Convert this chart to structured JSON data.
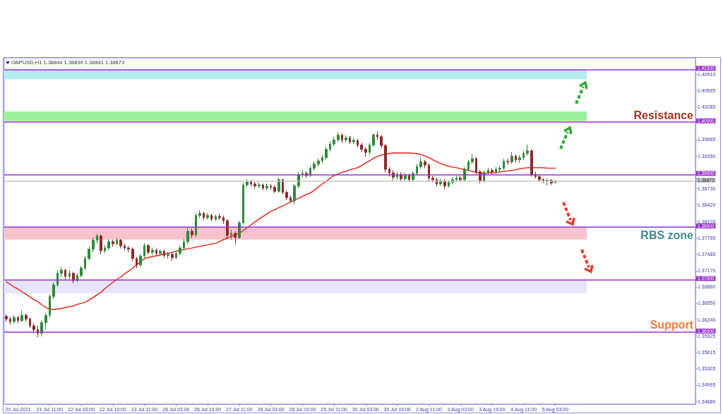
{
  "chart_data": {
    "type": "candlestick",
    "title": "GBPUSD,H1 1.38844 1.38894 1.38841 1.38873",
    "categories": [
      null,
      null,
      null,
      "20 Jul 2021",
      null,
      null,
      null,
      null,
      null,
      null,
      null,
      "21 Jul 11:00",
      null,
      null,
      null,
      null,
      null,
      null,
      null,
      "22 Jul 03:00",
      null,
      null,
      null,
      null,
      null,
      null,
      null,
      "22 Jul 19:00",
      null,
      null,
      null,
      null,
      null,
      null,
      null,
      "23 Jul 11:00",
      null,
      null,
      null,
      null,
      null,
      null,
      null,
      "26 Jul 03:00",
      null,
      null,
      null,
      null,
      null,
      null,
      null,
      "26 Jul 19:00",
      null,
      null,
      null,
      null,
      null,
      null,
      null,
      "27 Jul 11:00",
      null,
      null,
      null,
      null,
      null,
      null,
      null,
      "28 Jul 03:00",
      null,
      null,
      null,
      null,
      null,
      null,
      null,
      "28 Jul 19:00",
      null,
      null,
      null,
      null,
      null,
      null,
      null,
      "29 Jul 11:00",
      null,
      null,
      null,
      null,
      null,
      null,
      null,
      "30 Jul 03:00",
      null,
      null,
      null,
      null,
      null,
      null,
      null,
      "30 Jul 19:00",
      null,
      null,
      null,
      null,
      null,
      null,
      null,
      "2 Aug 11:00",
      null,
      null,
      null,
      null,
      null,
      null,
      null,
      "3 Aug 03:00",
      null,
      null,
      null,
      null,
      null,
      null,
      null,
      "3 Aug 19:00",
      null,
      null,
      null,
      null,
      null,
      null,
      null,
      "4 Aug 11:00",
      null,
      null,
      null,
      null,
      null,
      null,
      null,
      "5 Aug 03:00"
    ],
    "ohlc": [
      [
        1.363,
        1.3634,
        1.362,
        1.3625
      ],
      [
        1.3625,
        1.3629,
        1.3614,
        1.362
      ],
      [
        1.362,
        1.3632,
        1.3616,
        1.3628
      ],
      [
        1.3628,
        1.3631,
        1.3617,
        1.3622
      ],
      [
        1.3622,
        1.3641,
        1.3619,
        1.3632
      ],
      [
        1.3632,
        1.3635,
        1.362,
        1.3625
      ],
      [
        1.3625,
        1.3628,
        1.3608,
        1.3612
      ],
      [
        1.3612,
        1.3616,
        1.3598,
        1.3605
      ],
      [
        1.3605,
        1.3612,
        1.359,
        1.3598
      ],
      [
        1.3598,
        1.3622,
        1.3592,
        1.3618
      ],
      [
        1.3618,
        1.3637,
        1.3605,
        1.3632
      ],
      [
        1.3632,
        1.3672,
        1.3628,
        1.3668
      ],
      [
        1.3668,
        1.3695,
        1.3663,
        1.369
      ],
      [
        1.369,
        1.3718,
        1.3686,
        1.3712
      ],
      [
        1.3712,
        1.3724,
        1.3706,
        1.3718
      ],
      [
        1.3718,
        1.3721,
        1.37,
        1.3706
      ],
      [
        1.3706,
        1.3718,
        1.3701,
        1.3712
      ],
      [
        1.3712,
        1.3715,
        1.3693,
        1.3698
      ],
      [
        1.3698,
        1.3712,
        1.3695,
        1.3708
      ],
      [
        1.3708,
        1.3726,
        1.3704,
        1.3722
      ],
      [
        1.3722,
        1.3745,
        1.3718,
        1.374
      ],
      [
        1.374,
        1.3763,
        1.3736,
        1.3758
      ],
      [
        1.3758,
        1.378,
        1.3752,
        1.3775
      ],
      [
        1.3775,
        1.3787,
        1.3768,
        1.3783
      ],
      [
        1.3783,
        1.3786,
        1.3748,
        1.3755
      ],
      [
        1.3755,
        1.3766,
        1.375,
        1.376
      ],
      [
        1.376,
        1.3777,
        1.3756,
        1.3772
      ],
      [
        1.3772,
        1.3776,
        1.3762,
        1.3768
      ],
      [
        1.3768,
        1.3779,
        1.3764,
        1.3775
      ],
      [
        1.3775,
        1.3777,
        1.3759,
        1.3764
      ],
      [
        1.3764,
        1.3768,
        1.3755,
        1.376
      ],
      [
        1.376,
        1.3764,
        1.3752,
        1.3758
      ],
      [
        1.3758,
        1.3761,
        1.3735,
        1.374
      ],
      [
        1.374,
        1.3743,
        1.3722,
        1.3728
      ],
      [
        1.3728,
        1.3749,
        1.3725,
        1.3745
      ],
      [
        1.3745,
        1.3769,
        1.3741,
        1.3765
      ],
      [
        1.3765,
        1.3767,
        1.3748,
        1.3752
      ],
      [
        1.3752,
        1.3761,
        1.3747,
        1.3756
      ],
      [
        1.3756,
        1.3759,
        1.3745,
        1.375
      ],
      [
        1.375,
        1.3758,
        1.3744,
        1.3754
      ],
      [
        1.3754,
        1.3757,
        1.3741,
        1.3746
      ],
      [
        1.3746,
        1.3753,
        1.374,
        1.3748
      ],
      [
        1.3748,
        1.3752,
        1.3736,
        1.3742
      ],
      [
        1.3742,
        1.3755,
        1.3739,
        1.375
      ],
      [
        1.375,
        1.3765,
        1.3746,
        1.376
      ],
      [
        1.376,
        1.3777,
        1.3756,
        1.3772
      ],
      [
        1.3772,
        1.3798,
        1.3768,
        1.3792
      ],
      [
        1.3792,
        1.3797,
        1.3779,
        1.3785
      ],
      [
        1.3785,
        1.3827,
        1.3781,
        1.3822
      ],
      [
        1.3822,
        1.3832,
        1.3817,
        1.3826
      ],
      [
        1.3826,
        1.3829,
        1.3813,
        1.3818
      ],
      [
        1.3818,
        1.3827,
        1.3814,
        1.3822
      ],
      [
        1.3822,
        1.3825,
        1.3811,
        1.3815
      ],
      [
        1.3815,
        1.3824,
        1.3811,
        1.382
      ],
      [
        1.382,
        1.3825,
        1.3813,
        1.3818
      ],
      [
        1.3818,
        1.3822,
        1.3806,
        1.3812
      ],
      [
        1.3812,
        1.3815,
        1.3778,
        1.3784
      ],
      [
        1.3784,
        1.3795,
        1.3776,
        1.3788
      ],
      [
        1.3788,
        1.3792,
        1.3767,
        1.378
      ],
      [
        1.378,
        1.3812,
        1.3777,
        1.3808
      ],
      [
        1.3808,
        1.3884,
        1.3805,
        1.388
      ],
      [
        1.388,
        1.3891,
        1.3876,
        1.3886
      ],
      [
        1.3886,
        1.389,
        1.3877,
        1.3882
      ],
      [
        1.3882,
        1.3886,
        1.3873,
        1.3878
      ],
      [
        1.3878,
        1.3885,
        1.3874,
        1.388
      ],
      [
        1.388,
        1.3883,
        1.387,
        1.3874
      ],
      [
        1.3874,
        1.3883,
        1.387,
        1.3878
      ],
      [
        1.3878,
        1.3882,
        1.3871,
        1.3876
      ],
      [
        1.3876,
        1.3879,
        1.3865,
        1.3868
      ],
      [
        1.3868,
        1.3894,
        1.3865,
        1.389
      ],
      [
        1.389,
        1.3892,
        1.3862,
        1.3866
      ],
      [
        1.3866,
        1.3869,
        1.3851,
        1.3856
      ],
      [
        1.3856,
        1.386,
        1.3846,
        1.385
      ],
      [
        1.385,
        1.3882,
        1.3843,
        1.3878
      ],
      [
        1.3878,
        1.3905,
        1.3874,
        1.39
      ],
      [
        1.39,
        1.3908,
        1.3895,
        1.3902
      ],
      [
        1.3902,
        1.3906,
        1.3893,
        1.3898
      ],
      [
        1.3898,
        1.3916,
        1.3895,
        1.3912
      ],
      [
        1.3912,
        1.3925,
        1.3908,
        1.392
      ],
      [
        1.392,
        1.3931,
        1.3915,
        1.3926
      ],
      [
        1.3926,
        1.3937,
        1.3922,
        1.3932
      ],
      [
        1.3932,
        1.3953,
        1.3928,
        1.3948
      ],
      [
        1.3948,
        1.3963,
        1.3944,
        1.3958
      ],
      [
        1.3958,
        1.3972,
        1.3954,
        1.3966
      ],
      [
        1.3966,
        1.3981,
        1.3962,
        1.3975
      ],
      [
        1.3975,
        1.3978,
        1.396,
        1.3966
      ],
      [
        1.3966,
        1.3975,
        1.3962,
        1.397
      ],
      [
        1.397,
        1.3973,
        1.3958,
        1.3962
      ],
      [
        1.3962,
        1.397,
        1.3958,
        1.3965
      ],
      [
        1.3965,
        1.3968,
        1.3951,
        1.3956
      ],
      [
        1.3956,
        1.396,
        1.3943,
        1.3948
      ],
      [
        1.3948,
        1.3952,
        1.3934,
        1.3942
      ],
      [
        1.3942,
        1.396,
        1.3938,
        1.3956
      ],
      [
        1.3956,
        1.3979,
        1.3952,
        1.3975
      ],
      [
        1.3975,
        1.3982,
        1.3966,
        1.3972
      ],
      [
        1.3972,
        1.3975,
        1.395,
        1.3955
      ],
      [
        1.3955,
        1.3958,
        1.3904,
        1.391
      ],
      [
        1.391,
        1.3914,
        1.3896,
        1.3903
      ],
      [
        1.3903,
        1.3908,
        1.3889,
        1.3895
      ],
      [
        1.3895,
        1.3905,
        1.389,
        1.39
      ],
      [
        1.39,
        1.3904,
        1.3887,
        1.3892
      ],
      [
        1.3892,
        1.3903,
        1.3888,
        1.3898
      ],
      [
        1.3898,
        1.3901,
        1.3886,
        1.389
      ],
      [
        1.389,
        1.3906,
        1.3887,
        1.3902
      ],
      [
        1.3902,
        1.392,
        1.3898,
        1.3915
      ],
      [
        1.3915,
        1.3933,
        1.3911,
        1.3924
      ],
      [
        1.3924,
        1.3928,
        1.3912,
        1.3918
      ],
      [
        1.3918,
        1.3921,
        1.3888,
        1.3893
      ],
      [
        1.3893,
        1.3897,
        1.3885,
        1.389
      ],
      [
        1.389,
        1.3894,
        1.3877,
        1.3882
      ],
      [
        1.3882,
        1.3892,
        1.3878,
        1.3888
      ],
      [
        1.3888,
        1.3891,
        1.3872,
        1.3878
      ],
      [
        1.3878,
        1.3889,
        1.3875,
        1.3885
      ],
      [
        1.3885,
        1.3895,
        1.3881,
        1.389
      ],
      [
        1.389,
        1.3898,
        1.3886,
        1.3893
      ],
      [
        1.3893,
        1.3897,
        1.3886,
        1.389
      ],
      [
        1.389,
        1.3914,
        1.3887,
        1.391
      ],
      [
        1.391,
        1.3928,
        1.3906,
        1.3924
      ],
      [
        1.3924,
        1.3939,
        1.392,
        1.393
      ],
      [
        1.393,
        1.3933,
        1.39,
        1.3905
      ],
      [
        1.3905,
        1.3908,
        1.3883,
        1.3888
      ],
      [
        1.3888,
        1.3908,
        1.3885,
        1.3904
      ],
      [
        1.3904,
        1.3913,
        1.39,
        1.3908
      ],
      [
        1.3908,
        1.3912,
        1.39,
        1.3905
      ],
      [
        1.3905,
        1.3915,
        1.3901,
        1.391
      ],
      [
        1.391,
        1.3917,
        1.3906,
        1.3912
      ],
      [
        1.3912,
        1.393,
        1.3908,
        1.3925
      ],
      [
        1.3925,
        1.393,
        1.3919,
        1.3924
      ],
      [
        1.3924,
        1.3943,
        1.392,
        1.3935
      ],
      [
        1.3935,
        1.3938,
        1.3923,
        1.3928
      ],
      [
        1.3928,
        1.3937,
        1.3922,
        1.3932
      ],
      [
        1.3932,
        1.3945,
        1.3927,
        1.394
      ],
      [
        1.394,
        1.3957,
        1.3936,
        1.3945
      ],
      [
        1.3945,
        1.3948,
        1.3896,
        1.39
      ],
      [
        1.39,
        1.3905,
        1.3892,
        1.3896
      ],
      [
        1.3896,
        1.3899,
        1.3886,
        1.389
      ],
      [
        1.389,
        1.3893,
        1.3884,
        1.3888
      ],
      [
        1.3888,
        1.3893,
        1.3879,
        1.3889
      ],
      [
        1.3889,
        1.3891,
        1.388,
        1.3884
      ],
      [
        1.38844,
        1.38894,
        1.38841,
        1.38873
      ]
    ],
    "colors": [
      "#8e2a2a",
      "#8e2a2a",
      "#2f8a3b",
      "#8e2a2a",
      "#2f8a3b",
      "#8e2a2a",
      "#8e2a2a",
      "#8e2a2a",
      "#8e2a2a",
      "#2f8a3b",
      "#2f8a3b",
      "#2f8a3b",
      "#2f8a3b",
      "#2f8a3b",
      "#2f8a3b",
      "#8e2a2a",
      "#2f8a3b",
      "#8e2a2a",
      "#2f8a3b",
      "#2f8a3b",
      "#2f8a3b",
      "#2f8a3b",
      "#2f8a3b",
      "#2f8a3b",
      "#8e2a2a",
      "#2f8a3b",
      "#2f8a3b",
      "#8e2a2a",
      "#2f8a3b",
      "#8e2a2a",
      "#8e2a2a",
      "#8e2a2a",
      "#8e2a2a",
      "#8e2a2a",
      "#2f8a3b",
      "#2f8a3b",
      "#8e2a2a",
      "#2f8a3b",
      "#8e2a2a",
      "#2f8a3b",
      "#8e2a2a",
      "#2f8a3b",
      "#8e2a2a",
      "#2f8a3b",
      "#2f8a3b",
      "#2f8a3b",
      "#2f8a3b",
      "#8e2a2a",
      "#2f8a3b",
      "#2f8a3b",
      "#8e2a2a",
      "#2f8a3b",
      "#8e2a2a",
      "#2f8a3b",
      "#8e2a2a",
      "#8e2a2a",
      "#8e2a2a",
      "#2f8a3b",
      "#8e2a2a",
      "#2f8a3b",
      "#2f8a3b",
      "#2f8a3b",
      "#8e2a2a",
      "#8e2a2a",
      "#2f8a3b",
      "#8e2a2a",
      "#2f8a3b",
      "#8e2a2a",
      "#8e2a2a",
      "#2f8a3b",
      "#8e2a2a",
      "#8e2a2a",
      "#8e2a2a",
      "#2f8a3b",
      "#2f8a3b",
      "#2f8a3b",
      "#8e2a2a",
      "#2f8a3b",
      "#2f8a3b",
      "#2f8a3b",
      "#2f8a3b",
      "#2f8a3b",
      "#2f8a3b",
      "#2f8a3b",
      "#2f8a3b",
      "#8e2a2a",
      "#2f8a3b",
      "#8e2a2a",
      "#2f8a3b",
      "#8e2a2a",
      "#8e2a2a",
      "#8e2a2a",
      "#2f8a3b",
      "#2f8a3b",
      "#8e2a2a",
      "#8e2a2a",
      "#8e2a2a",
      "#8e2a2a",
      "#8e2a2a",
      "#2f8a3b",
      "#8e2a2a",
      "#2f8a3b",
      "#8e2a2a",
      "#2f8a3b",
      "#2f8a3b",
      "#2f8a3b",
      "#8e2a2a",
      "#8e2a2a",
      "#8e2a2a",
      "#8e2a2a",
      "#2f8a3b",
      "#8e2a2a",
      "#2f8a3b",
      "#2f8a3b",
      "#2f8a3b",
      "#8e2a2a",
      "#2f8a3b",
      "#2f8a3b",
      "#2f8a3b",
      "#8e2a2a",
      "#8e2a2a",
      "#2f8a3b",
      "#2f8a3b",
      "#8e2a2a",
      "#2f8a3b",
      "#2f8a3b",
      "#2f8a3b",
      "#8e2a2a",
      "#2f8a3b",
      "#8e2a2a",
      "#2f8a3b",
      "#2f8a3b",
      "#2f8a3b",
      "#8e2a2a",
      "#8e2a2a",
      "#8e2a2a",
      "#8e2a2a",
      "#2f8a3b",
      "#8e2a2a",
      "#2f8a3b"
    ],
    "series": [
      {
        "type": "line",
        "color": "#e53a2f",
        "marker": "none",
        "values": [
          1.3696,
          1.3691,
          1.3686,
          1.3682,
          1.3677,
          1.3672,
          1.3667,
          1.3662,
          1.3658,
          1.3652,
          1.3647,
          1.3644,
          1.3643,
          1.3644,
          1.3645,
          1.3647,
          1.3648,
          1.365,
          1.3653,
          1.3655,
          1.3657,
          1.3661,
          1.3666,
          1.3671,
          1.3676,
          1.3683,
          1.3689,
          1.3695,
          1.37,
          1.3705,
          1.3711,
          1.3716,
          1.3722,
          1.3728,
          1.3734,
          1.374,
          1.3742,
          1.3744,
          1.3745,
          1.3747,
          1.3748,
          1.375,
          1.3752,
          1.3754,
          1.3756,
          1.3757,
          1.3759,
          1.376,
          1.3762,
          1.3763,
          1.3765,
          1.3766,
          1.3768,
          1.3769,
          1.3772,
          1.3776,
          1.3779,
          1.3782,
          1.3785,
          1.3788,
          1.3793,
          1.3799,
          1.3804,
          1.381,
          1.3815,
          1.382,
          1.3825,
          1.383,
          1.3833,
          1.3837,
          1.384,
          1.3844,
          1.3848,
          1.3851,
          1.3855,
          1.3858,
          1.3862,
          1.3865,
          1.387,
          1.3876,
          1.3882,
          1.3887,
          1.3893,
          1.3898,
          1.3901,
          1.3904,
          1.3906,
          1.3909,
          1.3911,
          1.3913,
          1.3917,
          1.3922,
          1.3926,
          1.3931,
          1.3934,
          1.3937,
          1.3939,
          1.394,
          1.3941,
          1.3941,
          1.3941,
          1.3941,
          1.3941,
          1.394,
          1.394,
          1.3938,
          1.3935,
          1.3932,
          1.3928,
          1.3924,
          1.3921,
          1.3918,
          1.3916,
          1.3914,
          1.3913,
          1.3911,
          1.391,
          1.3908,
          1.3906,
          1.3904,
          1.3903,
          1.3902,
          1.3903,
          1.3903,
          1.3904,
          1.3905,
          1.3906,
          1.3907,
          1.3908,
          1.3909,
          1.3911,
          1.3912,
          1.3913,
          1.3913,
          1.3913,
          1.3913,
          1.3913,
          1.3912,
          1.3912,
          1.3912
        ]
      }
    ],
    "ylim": [
      1.3463,
      1.4122
    ],
    "yticks": [
      {
        "value": 1.4091,
        "label": "1.40910"
      },
      1.40595,
      1.40285,
      1.39665,
      {
        "value": 1.3935,
        "label": "1.39350"
      },
      {
        "value": 1.3873,
        "label": "1.38730"
      },
      {
        "value": 1.3842,
        "label": "1.38420"
      },
      1.38105,
      1.37795,
      1.37485,
      {
        "value": 1.3717,
        "label": "1.37170"
      },
      {
        "value": 1.3686,
        "label": "1.36860"
      },
      {
        "value": 1.3655,
        "label": "1.36550"
      },
      {
        "value": 1.3624,
        "label": "1.36240"
      },
      1.35925,
      1.35615,
      1.35305,
      1.34995,
      {
        "value": 1.3468,
        "label": "1.34680"
      }
    ],
    "ref_lines": [
      {
        "axis": "y",
        "value": 1.41,
        "label": "1.41000",
        "color": "#9a32cd"
      },
      {
        "axis": "y",
        "value": 1.4,
        "label": "1.40000",
        "color": "#9a32cd"
      },
      {
        "axis": "y",
        "value": 1.39,
        "label": "1.39000",
        "color": "#9a32cd"
      },
      {
        "axis": "y",
        "value": 1.38873,
        "label": "1.38873",
        "color": "#c4c4c4"
      },
      {
        "axis": "y",
        "value": 1.38,
        "label": "1.38000",
        "color": "#9a32cd"
      },
      {
        "axis": "y",
        "value": 1.37,
        "label": "1.37000",
        "color": "#9a32cd"
      },
      {
        "axis": "y",
        "value": 1.36,
        "label": "1.36000",
        "color": "#9a32cd"
      }
    ],
    "bands": [
      {
        "axis": "y",
        "from": 1.4081,
        "to": 1.41,
        "color": "#b3ebee"
      },
      {
        "axis": "y",
        "from": 1.4002,
        "to": 1.402,
        "color": "#9cf29c"
      },
      {
        "axis": "y",
        "from": 1.3776,
        "to": 1.38,
        "color": "#f8c3cb"
      },
      {
        "axis": "y",
        "from": 1.3674,
        "to": 1.37,
        "color": "#e7e5fa"
      }
    ],
    "annotations": [
      "Resistance",
      "RBS zone",
      "Support"
    ]
  }
}
